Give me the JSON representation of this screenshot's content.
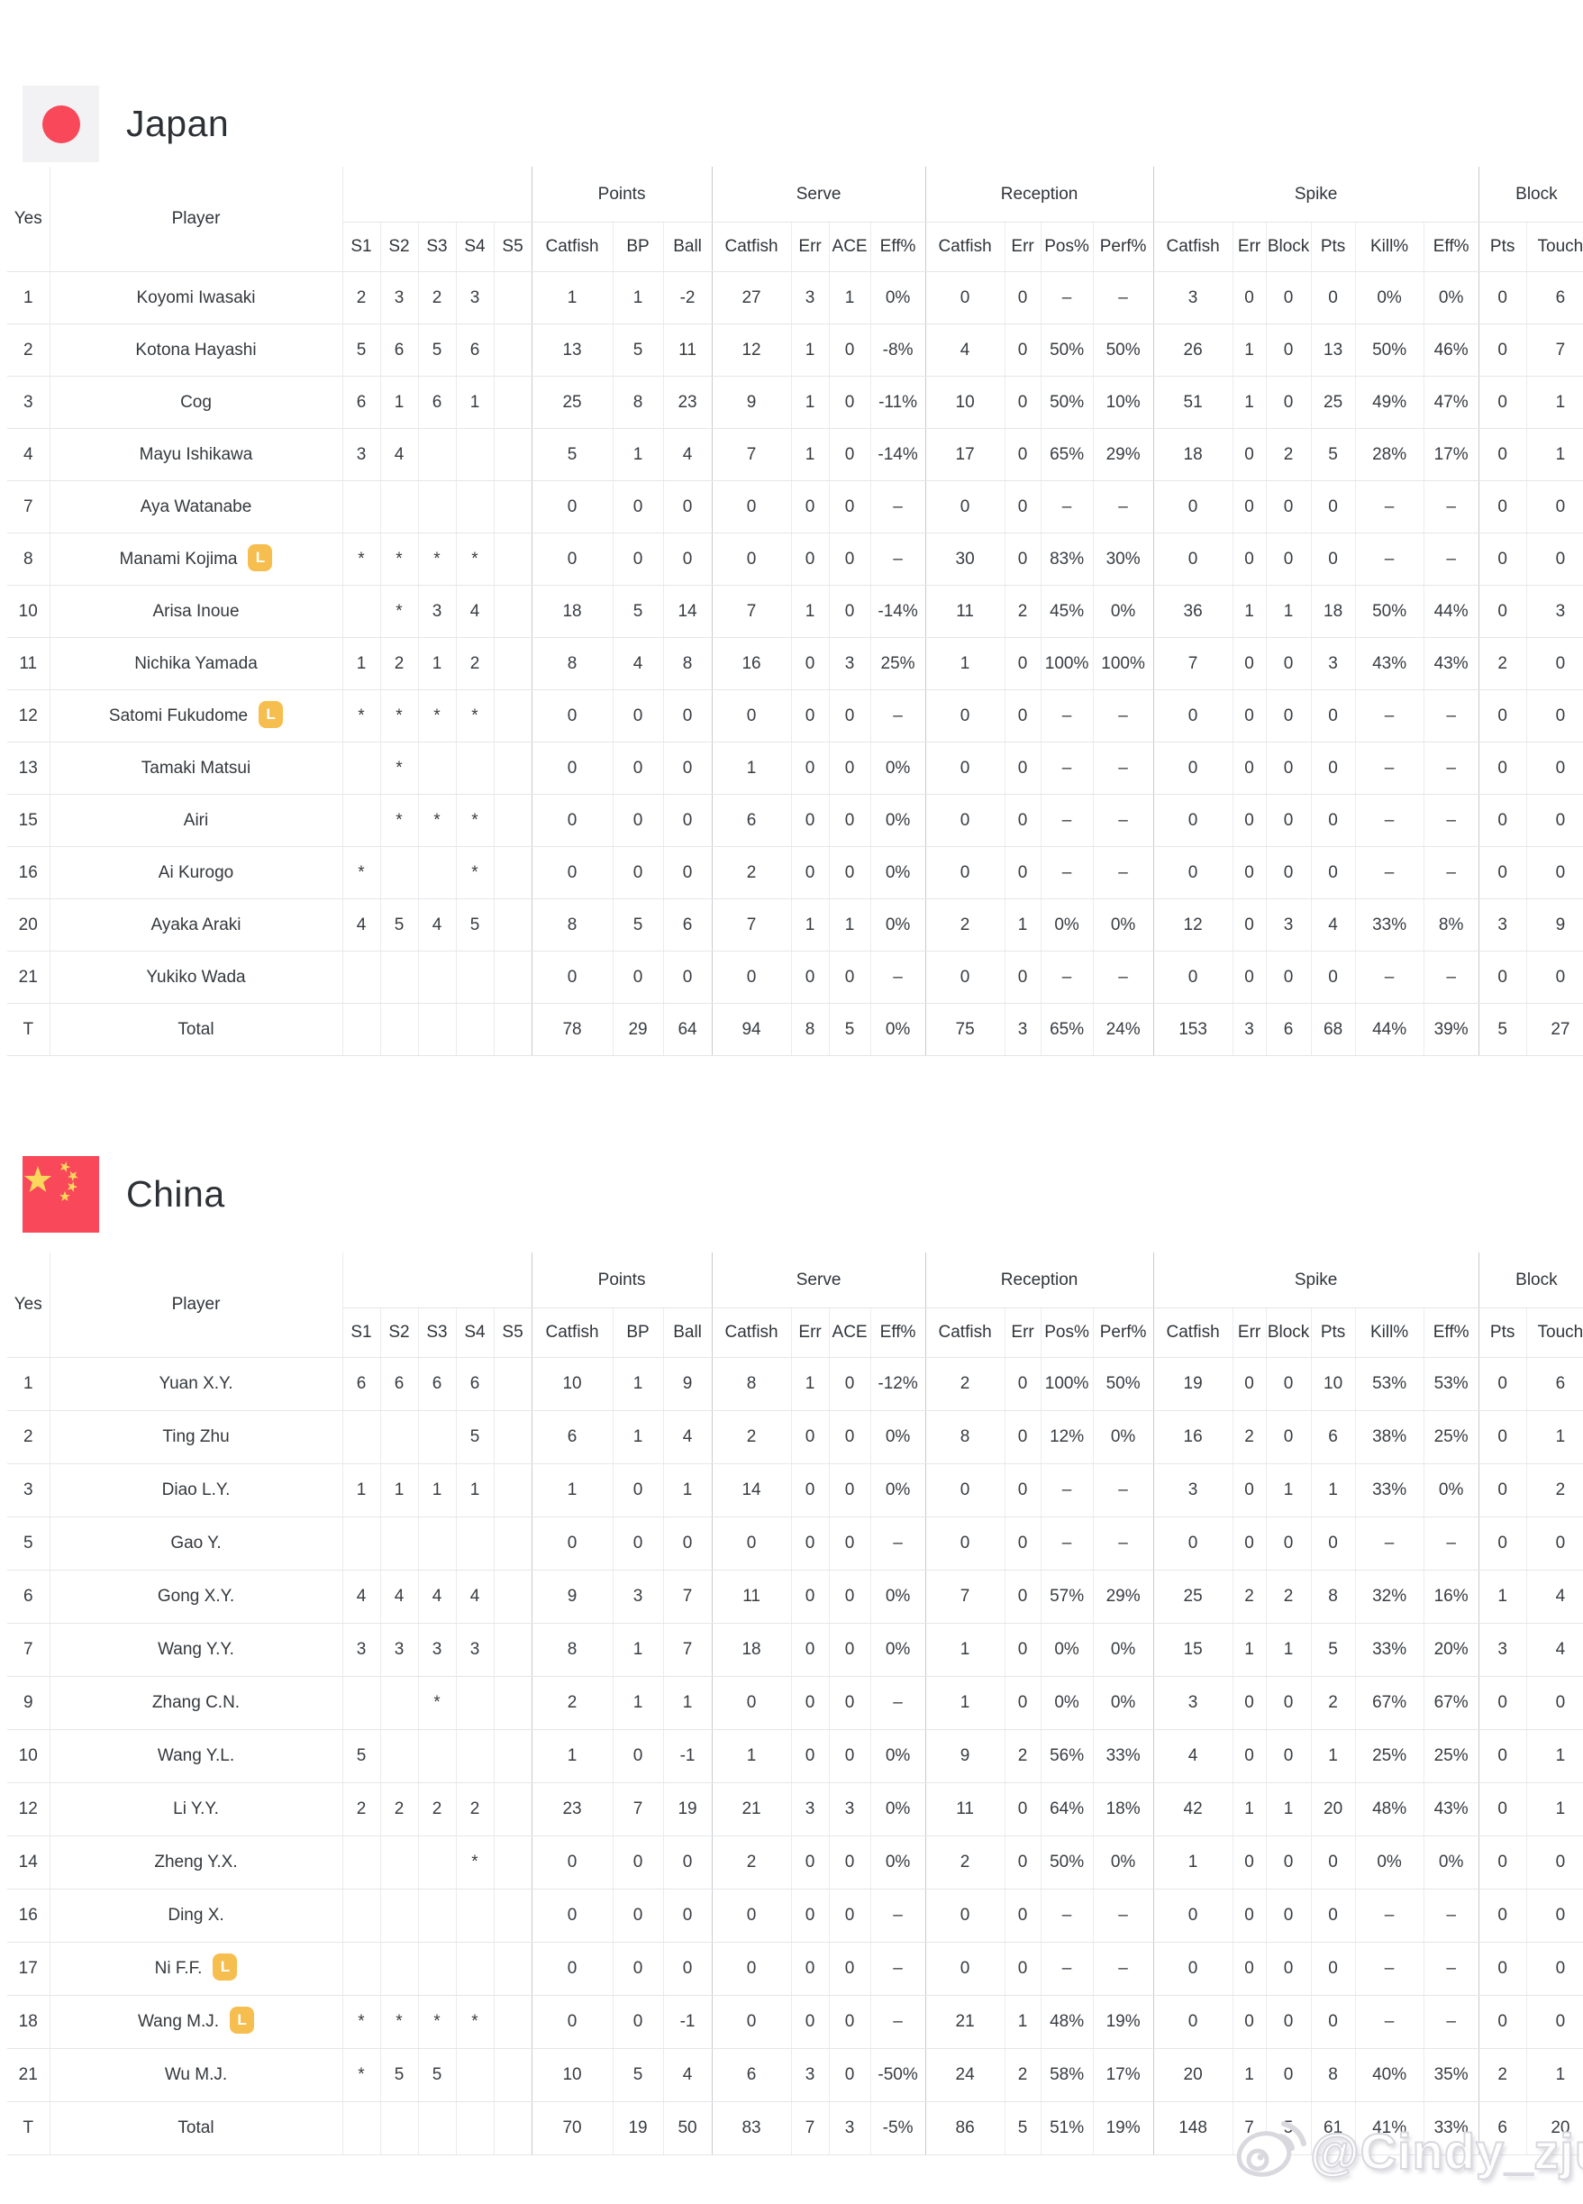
{
  "header": {
    "yes": "Yes",
    "player": "Player",
    "groups": [
      {
        "label": "Points"
      },
      {
        "label": "Serve"
      },
      {
        "label": "Reception"
      },
      {
        "label": "Spike"
      },
      {
        "label": "Block"
      }
    ],
    "subcols": [
      "S1",
      "S2",
      "S3",
      "S4",
      "S5",
      "Catfish",
      "BP",
      "Ball",
      "Catfish",
      "Err",
      "ACE",
      "Eff%",
      "Catfish",
      "Err",
      "Pos%",
      "Perf%",
      "Catfish",
      "Err",
      "Block",
      "Pts",
      "Kill%",
      "Eff%",
      "Pts",
      "Touch"
    ]
  },
  "libero_badge": "L",
  "colors": {
    "accent_red": "#f8485a",
    "flag_star_yellow": "#fbd75c",
    "libero_badge_bg": "#f6be4f",
    "japan_flag_bg": "#f2f2f4"
  },
  "teams": [
    {
      "name": "Japan",
      "rows": [
        {
          "no": "1",
          "name": "Koyomi Iwasaki",
          "libero": false,
          "cells": [
            "2",
            "3",
            "2",
            "3",
            "",
            "1",
            "1",
            "-2",
            "27",
            "3",
            "1",
            "0%",
            "0",
            "0",
            "–",
            "–",
            "3",
            "0",
            "0",
            "0",
            "0%",
            "0%",
            "0",
            "6"
          ]
        },
        {
          "no": "2",
          "name": "Kotona Hayashi",
          "libero": false,
          "cells": [
            "5",
            "6",
            "5",
            "6",
            "",
            "13",
            "5",
            "11",
            "12",
            "1",
            "0",
            "-8%",
            "4",
            "0",
            "50%",
            "50%",
            "26",
            "1",
            "0",
            "13",
            "50%",
            "46%",
            "0",
            "7"
          ]
        },
        {
          "no": "3",
          "name": "Cog",
          "libero": false,
          "cells": [
            "6",
            "1",
            "6",
            "1",
            "",
            "25",
            "8",
            "23",
            "9",
            "1",
            "0",
            "-11%",
            "10",
            "0",
            "50%",
            "10%",
            "51",
            "1",
            "0",
            "25",
            "49%",
            "47%",
            "0",
            "1"
          ]
        },
        {
          "no": "4",
          "name": "Mayu Ishikawa",
          "libero": false,
          "cells": [
            "3",
            "4",
            "",
            "",
            "",
            "5",
            "1",
            "4",
            "7",
            "1",
            "0",
            "-14%",
            "17",
            "0",
            "65%",
            "29%",
            "18",
            "0",
            "2",
            "5",
            "28%",
            "17%",
            "0",
            "1"
          ]
        },
        {
          "no": "7",
          "name": "Aya Watanabe",
          "libero": false,
          "cells": [
            "",
            "",
            "",
            "",
            "",
            "0",
            "0",
            "0",
            "0",
            "0",
            "0",
            "–",
            "0",
            "0",
            "–",
            "–",
            "0",
            "0",
            "0",
            "0",
            "–",
            "–",
            "0",
            "0"
          ]
        },
        {
          "no": "8",
          "name": "Manami Kojima",
          "libero": true,
          "cells": [
            "*",
            "*",
            "*",
            "*",
            "",
            "0",
            "0",
            "0",
            "0",
            "0",
            "0",
            "–",
            "30",
            "0",
            "83%",
            "30%",
            "0",
            "0",
            "0",
            "0",
            "–",
            "–",
            "0",
            "0"
          ]
        },
        {
          "no": "10",
          "name": "Arisa Inoue",
          "libero": false,
          "cells": [
            "",
            "*",
            "3",
            "4",
            "",
            "18",
            "5",
            "14",
            "7",
            "1",
            "0",
            "-14%",
            "11",
            "2",
            "45%",
            "0%",
            "36",
            "1",
            "1",
            "18",
            "50%",
            "44%",
            "0",
            "3"
          ]
        },
        {
          "no": "11",
          "name": "Nichika Yamada",
          "libero": false,
          "cells": [
            "1",
            "2",
            "1",
            "2",
            "",
            "8",
            "4",
            "8",
            "16",
            "0",
            "3",
            "25%",
            "1",
            "0",
            "100%",
            "100%",
            "7",
            "0",
            "0",
            "3",
            "43%",
            "43%",
            "2",
            "0"
          ]
        },
        {
          "no": "12",
          "name": "Satomi Fukudome",
          "libero": true,
          "cells": [
            "*",
            "*",
            "*",
            "*",
            "",
            "0",
            "0",
            "0",
            "0",
            "0",
            "0",
            "–",
            "0",
            "0",
            "–",
            "–",
            "0",
            "0",
            "0",
            "0",
            "–",
            "–",
            "0",
            "0"
          ]
        },
        {
          "no": "13",
          "name": "Tamaki Matsui",
          "libero": false,
          "cells": [
            "",
            "*",
            "",
            "",
            "",
            "0",
            "0",
            "0",
            "1",
            "0",
            "0",
            "0%",
            "0",
            "0",
            "–",
            "–",
            "0",
            "0",
            "0",
            "0",
            "–",
            "–",
            "0",
            "0"
          ]
        },
        {
          "no": "15",
          "name": "Airi",
          "libero": false,
          "cells": [
            "",
            "*",
            "*",
            "*",
            "",
            "0",
            "0",
            "0",
            "6",
            "0",
            "0",
            "0%",
            "0",
            "0",
            "–",
            "–",
            "0",
            "0",
            "0",
            "0",
            "–",
            "–",
            "0",
            "0"
          ]
        },
        {
          "no": "16",
          "name": "Ai Kurogo",
          "libero": false,
          "cells": [
            "*",
            "",
            "",
            "*",
            "",
            "0",
            "0",
            "0",
            "2",
            "0",
            "0",
            "0%",
            "0",
            "0",
            "–",
            "–",
            "0",
            "0",
            "0",
            "0",
            "–",
            "–",
            "0",
            "0"
          ]
        },
        {
          "no": "20",
          "name": "Ayaka Araki",
          "libero": false,
          "cells": [
            "4",
            "5",
            "4",
            "5",
            "",
            "8",
            "5",
            "6",
            "7",
            "1",
            "1",
            "0%",
            "2",
            "1",
            "0%",
            "0%",
            "12",
            "0",
            "3",
            "4",
            "33%",
            "8%",
            "3",
            "9"
          ]
        },
        {
          "no": "21",
          "name": "Yukiko Wada",
          "libero": false,
          "cells": [
            "",
            "",
            "",
            "",
            "",
            "0",
            "0",
            "0",
            "0",
            "0",
            "0",
            "–",
            "0",
            "0",
            "–",
            "–",
            "0",
            "0",
            "0",
            "0",
            "–",
            "–",
            "0",
            "0"
          ]
        },
        {
          "no": "T",
          "name": "Total",
          "libero": false,
          "total": true,
          "cells": [
            "",
            "",
            "",
            "",
            "",
            "78",
            "29",
            "64",
            "94",
            "8",
            "5",
            "0%",
            "75",
            "3",
            "65%",
            "24%",
            "153",
            "3",
            "6",
            "68",
            "44%",
            "39%",
            "5",
            "27"
          ]
        }
      ]
    },
    {
      "name": "China",
      "rows": [
        {
          "no": "1",
          "name": "Yuan X.Y.",
          "libero": false,
          "cells": [
            "6",
            "6",
            "6",
            "6",
            "",
            "10",
            "1",
            "9",
            "8",
            "1",
            "0",
            "-12%",
            "2",
            "0",
            "100%",
            "50%",
            "19",
            "0",
            "0",
            "10",
            "53%",
            "53%",
            "0",
            "6"
          ]
        },
        {
          "no": "2",
          "name": "Ting Zhu",
          "libero": false,
          "cells": [
            "",
            "",
            "",
            "5",
            "",
            "6",
            "1",
            "4",
            "2",
            "0",
            "0",
            "0%",
            "8",
            "0",
            "12%",
            "0%",
            "16",
            "2",
            "0",
            "6",
            "38%",
            "25%",
            "0",
            "1"
          ]
        },
        {
          "no": "3",
          "name": "Diao L.Y.",
          "libero": false,
          "cells": [
            "1",
            "1",
            "1",
            "1",
            "",
            "1",
            "0",
            "1",
            "14",
            "0",
            "0",
            "0%",
            "0",
            "0",
            "–",
            "–",
            "3",
            "0",
            "1",
            "1",
            "33%",
            "0%",
            "0",
            "2"
          ]
        },
        {
          "no": "5",
          "name": "Gao Y.",
          "libero": false,
          "cells": [
            "",
            "",
            "",
            "",
            "",
            "0",
            "0",
            "0",
            "0",
            "0",
            "0",
            "–",
            "0",
            "0",
            "–",
            "–",
            "0",
            "0",
            "0",
            "0",
            "–",
            "–",
            "0",
            "0"
          ]
        },
        {
          "no": "6",
          "name": "Gong X.Y.",
          "libero": false,
          "cells": [
            "4",
            "4",
            "4",
            "4",
            "",
            "9",
            "3",
            "7",
            "11",
            "0",
            "0",
            "0%",
            "7",
            "0",
            "57%",
            "29%",
            "25",
            "2",
            "2",
            "8",
            "32%",
            "16%",
            "1",
            "4"
          ]
        },
        {
          "no": "7",
          "name": "Wang Y.Y.",
          "libero": false,
          "cells": [
            "3",
            "3",
            "3",
            "3",
            "",
            "8",
            "1",
            "7",
            "18",
            "0",
            "0",
            "0%",
            "1",
            "0",
            "0%",
            "0%",
            "15",
            "1",
            "1",
            "5",
            "33%",
            "20%",
            "3",
            "4"
          ]
        },
        {
          "no": "9",
          "name": "Zhang C.N.",
          "libero": false,
          "cells": [
            "",
            "",
            "*",
            "",
            "",
            "2",
            "1",
            "1",
            "0",
            "0",
            "0",
            "–",
            "1",
            "0",
            "0%",
            "0%",
            "3",
            "0",
            "0",
            "2",
            "67%",
            "67%",
            "0",
            "0"
          ]
        },
        {
          "no": "10",
          "name": "Wang Y.L.",
          "libero": false,
          "cells": [
            "5",
            "",
            "",
            "",
            "",
            "1",
            "0",
            "-1",
            "1",
            "0",
            "0",
            "0%",
            "9",
            "2",
            "56%",
            "33%",
            "4",
            "0",
            "0",
            "1",
            "25%",
            "25%",
            "0",
            "1"
          ]
        },
        {
          "no": "12",
          "name": "Li Y.Y.",
          "libero": false,
          "cells": [
            "2",
            "2",
            "2",
            "2",
            "",
            "23",
            "7",
            "19",
            "21",
            "3",
            "3",
            "0%",
            "11",
            "0",
            "64%",
            "18%",
            "42",
            "1",
            "1",
            "20",
            "48%",
            "43%",
            "0",
            "1"
          ]
        },
        {
          "no": "14",
          "name": "Zheng Y.X.",
          "libero": false,
          "cells": [
            "",
            "",
            "",
            "*",
            "",
            "0",
            "0",
            "0",
            "2",
            "0",
            "0",
            "0%",
            "2",
            "0",
            "50%",
            "0%",
            "1",
            "0",
            "0",
            "0",
            "0%",
            "0%",
            "0",
            "0"
          ]
        },
        {
          "no": "16",
          "name": "Ding X.",
          "libero": false,
          "cells": [
            "",
            "",
            "",
            "",
            "",
            "0",
            "0",
            "0",
            "0",
            "0",
            "0",
            "–",
            "0",
            "0",
            "–",
            "–",
            "0",
            "0",
            "0",
            "0",
            "–",
            "–",
            "0",
            "0"
          ]
        },
        {
          "no": "17",
          "name": "Ni F.F.",
          "libero": true,
          "cells": [
            "",
            "",
            "",
            "",
            "",
            "0",
            "0",
            "0",
            "0",
            "0",
            "0",
            "–",
            "0",
            "0",
            "–",
            "–",
            "0",
            "0",
            "0",
            "0",
            "–",
            "–",
            "0",
            "0"
          ]
        },
        {
          "no": "18",
          "name": "Wang M.J.",
          "libero": true,
          "cells": [
            "*",
            "*",
            "*",
            "*",
            "",
            "0",
            "0",
            "-1",
            "0",
            "0",
            "0",
            "–",
            "21",
            "1",
            "48%",
            "19%",
            "0",
            "0",
            "0",
            "0",
            "–",
            "–",
            "0",
            "0"
          ]
        },
        {
          "no": "21",
          "name": "Wu M.J.",
          "libero": false,
          "cells": [
            "*",
            "5",
            "5",
            "",
            "",
            "10",
            "5",
            "4",
            "6",
            "3",
            "0",
            "-50%",
            "24",
            "2",
            "58%",
            "17%",
            "20",
            "1",
            "0",
            "8",
            "40%",
            "35%",
            "2",
            "1"
          ]
        },
        {
          "no": "T",
          "name": "Total",
          "libero": false,
          "total": true,
          "cells": [
            "",
            "",
            "",
            "",
            "",
            "70",
            "19",
            "50",
            "83",
            "7",
            "3",
            "-5%",
            "86",
            "5",
            "51%",
            "19%",
            "148",
            "7",
            "5",
            "61",
            "41%",
            "33%",
            "6",
            "20"
          ]
        }
      ]
    }
  ],
  "watermark": {
    "text": "@Cindy_zju"
  }
}
